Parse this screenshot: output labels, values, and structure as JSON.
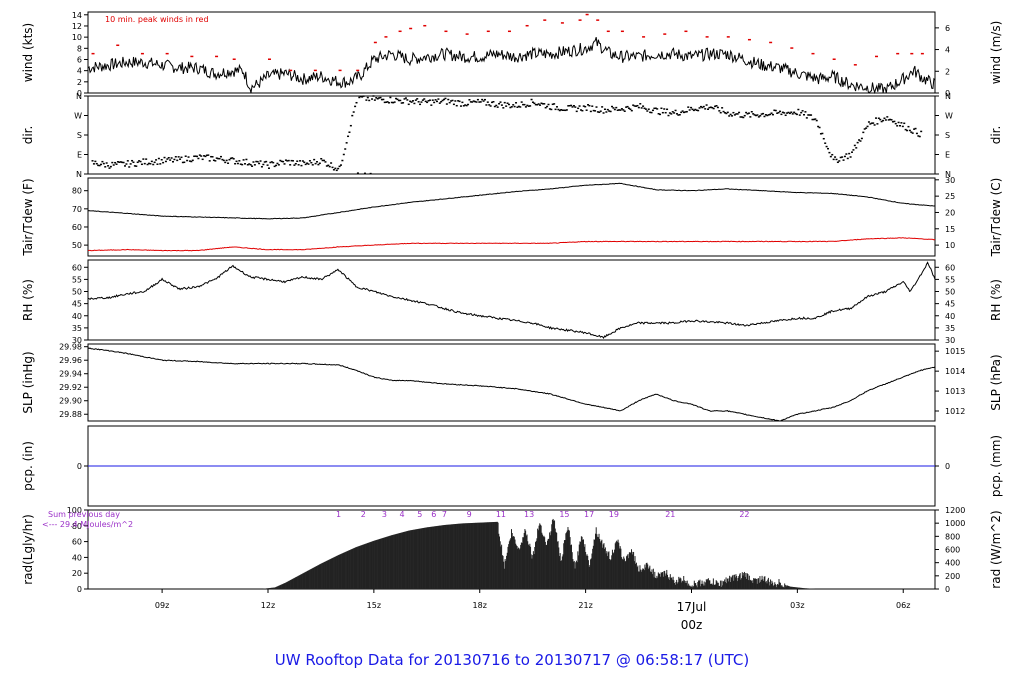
{
  "figure": {
    "title": "UW Rooftop Data for 20130716  to  20130717 @ 06:58:17  (UTC)",
    "x_ticks": [
      "09z",
      "12z",
      "15z",
      "18z",
      "21z",
      "03z",
      "06z"
    ],
    "x_tick_hours": [
      9,
      12,
      15,
      18,
      21,
      27,
      30
    ],
    "x_range_hours": [
      6.9,
      30.9
    ],
    "day_label": "17Jul",
    "day_label_z": "00z",
    "colors": {
      "axis": "#000000",
      "red": "#e00000",
      "blue": "#1a1ae6",
      "purple": "#9b30c8"
    }
  },
  "chart_data": [
    {
      "type": "line",
      "name": "wind",
      "ylabel_left": "wind (kts)",
      "ylabel_right": "wind (m/s)",
      "annotation": "10 min. peak winds in red",
      "ylim": [
        0,
        14.5
      ],
      "yticks_left": [
        "0",
        "2",
        "4",
        "6",
        "8",
        "10",
        "12",
        "14"
      ],
      "yticks_left_values": [
        0,
        2,
        4,
        6,
        8,
        10,
        12,
        14
      ],
      "yticks_right": [
        "0",
        "2",
        "4",
        "6"
      ],
      "yticks_right_values": [
        0,
        3.89,
        7.78,
        11.66
      ],
      "series": [
        {
          "hours": [
            6.9,
            7.5,
            8.0,
            8.5,
            9.0,
            9.5,
            10.0,
            10.5,
            11.0,
            11.3,
            11.5,
            11.7,
            12.0,
            12.5,
            13.0,
            13.5,
            14.0,
            14.3,
            14.6,
            15.0,
            15.5,
            16.0,
            16.5,
            17.0,
            17.5,
            18.0,
            18.5,
            19.0,
            19.5,
            20.0,
            20.5,
            21.0,
            21.3,
            21.5,
            21.7,
            22.0,
            22.5,
            23.0,
            23.5,
            24.0,
            24.5,
            25.0,
            25.5,
            26.0,
            26.5,
            27.0,
            27.3,
            27.6,
            28.0,
            28.5,
            29.0,
            29.5,
            30.0,
            30.3,
            30.6,
            30.9
          ],
          "values": [
            4.5,
            5,
            5.5,
            5.5,
            5,
            4.5,
            4.5,
            3.5,
            4,
            4,
            1,
            1.5,
            3,
            3.5,
            2.5,
            3,
            2,
            2,
            3,
            6,
            7,
            6,
            6.5,
            7,
            6.5,
            6.5,
            7,
            6.5,
            7,
            7,
            7.5,
            8,
            9,
            8,
            7,
            6.5,
            6.5,
            7,
            7,
            6.5,
            7,
            7,
            6,
            5,
            4.5,
            3.5,
            3,
            2.5,
            3,
            1.5,
            1,
            0.5,
            2.5,
            4,
            2.5,
            1.5
          ],
          "color": "#000000"
        },
        {
          "hours": [
            7.0,
            7.7,
            8.4,
            9.1,
            9.8,
            10.5,
            11.0,
            12.0,
            12.6,
            13.3,
            14.0,
            14.5,
            15.0,
            15.3,
            15.7,
            16.0,
            16.4,
            17.0,
            17.6,
            18.2,
            18.8,
            19.3,
            19.8,
            20.3,
            20.8,
            21.0,
            21.3,
            21.6,
            22.0,
            22.6,
            23.2,
            23.8,
            24.4,
            25.0,
            25.6,
            26.2,
            26.8,
            27.4,
            28.0,
            28.6,
            29.2,
            29.8,
            30.2,
            30.5
          ],
          "values": [
            7,
            8.5,
            7,
            7,
            6.5,
            6.5,
            6,
            6,
            4,
            4,
            4,
            4,
            9,
            10,
            11,
            11.5,
            12,
            11,
            10.5,
            11,
            11,
            12,
            13,
            12.5,
            13,
            14,
            13,
            11,
            11,
            10,
            10.5,
            11,
            10,
            10,
            9.5,
            9,
            8,
            7,
            6,
            5,
            6.5,
            7,
            7,
            7
          ],
          "color": "#e00000"
        }
      ]
    },
    {
      "type": "scatter",
      "name": "dir",
      "ylabel_left": "dir.",
      "ylabel_right": "dir.",
      "ylim": [
        0,
        360
      ],
      "yticks_left": [
        "N",
        "E",
        "S",
        "W",
        "N"
      ],
      "yticks_left_values": [
        0,
        90,
        180,
        270,
        360
      ],
      "yticks_right": [
        "N",
        "E",
        "S",
        "W",
        "N"
      ],
      "yticks_right_values": [
        0,
        90,
        180,
        270,
        360
      ],
      "series": [
        {
          "hours": [
            7.0,
            7.5,
            8.0,
            8.5,
            9.0,
            9.5,
            10.0,
            10.5,
            11.0,
            11.5,
            12.0,
            12.5,
            13.0,
            13.5,
            14.0,
            14.5,
            15.0,
            15.5,
            16.0,
            16.5,
            17.0,
            17.5,
            18.0,
            18.5,
            19.0,
            19.5,
            20.0,
            20.5,
            21.0,
            21.5,
            22.0,
            22.5,
            23.0,
            23.5,
            24.0,
            24.5,
            25.0,
            25.5,
            26.0,
            26.5,
            27.0,
            27.5,
            28.0,
            28.5,
            29.0,
            29.5,
            30.0,
            30.5
          ],
          "values": [
            50,
            40,
            45,
            55,
            60,
            65,
            75,
            70,
            60,
            50,
            40,
            55,
            45,
            60,
            20,
            350,
            345,
            340,
            335,
            330,
            335,
            325,
            330,
            320,
            315,
            330,
            310,
            300,
            305,
            295,
            300,
            310,
            290,
            280,
            300,
            310,
            280,
            270,
            275,
            280,
            285,
            250,
            60,
            90,
            230,
            260,
            220,
            180
          ],
          "color": "#000000"
        }
      ]
    },
    {
      "type": "line",
      "name": "temperature",
      "ylabel_left": "Tair/Tdew (F)",
      "ylabel_right": "Tair/Tdew (C)",
      "ylim": [
        44,
        87
      ],
      "yticks_left": [
        "50",
        "60",
        "70",
        "80"
      ],
      "yticks_left_values": [
        50,
        60,
        70,
        80
      ],
      "yticks_right": [
        "10",
        "15",
        "20",
        "25",
        "30"
      ],
      "yticks_right_values": [
        50,
        59,
        68,
        77,
        86
      ],
      "series": [
        {
          "hours": [
            6.9,
            8,
            9,
            10,
            11,
            12,
            13,
            14,
            15,
            16,
            17,
            18,
            19,
            20,
            21,
            22,
            23,
            24,
            25,
            26,
            27,
            28,
            29,
            30,
            30.9
          ],
          "values": [
            69,
            67.5,
            66,
            65.5,
            65,
            64.5,
            65,
            68,
            71,
            73.5,
            75.5,
            77.5,
            79.5,
            81,
            83,
            84,
            80.5,
            80,
            81,
            80,
            79,
            78.5,
            76.5,
            73,
            71.5
          ],
          "color": "#000000"
        },
        {
          "hours": [
            6.9,
            8,
            9,
            10,
            11,
            12,
            13,
            14,
            15,
            16,
            17,
            18,
            19,
            20,
            21,
            22,
            23,
            24,
            25,
            26,
            27,
            28,
            29,
            30,
            30.9
          ],
          "values": [
            47,
            47.5,
            47,
            47,
            49,
            47.5,
            47.5,
            49,
            50,
            51,
            51,
            51,
            51,
            51,
            52,
            52,
            52,
            52,
            52,
            52,
            52,
            52,
            53.5,
            54,
            53
          ],
          "color": "#e00000"
        }
      ]
    },
    {
      "type": "line",
      "name": "rh",
      "ylabel_left": "RH (%)",
      "ylabel_right": "RH (%)",
      "ylim": [
        30,
        63
      ],
      "yticks_left": [
        "30",
        "35",
        "40",
        "45",
        "50",
        "55",
        "60"
      ],
      "yticks_left_values": [
        30,
        35,
        40,
        45,
        50,
        55,
        60
      ],
      "yticks_right": [
        "30",
        "35",
        "40",
        "45",
        "50",
        "55",
        "60"
      ],
      "yticks_right_values": [
        30,
        35,
        40,
        45,
        50,
        55,
        60
      ],
      "series": [
        {
          "hours": [
            6.9,
            7.5,
            8,
            8.5,
            9,
            9.5,
            10,
            10.5,
            11,
            11.5,
            12,
            12.5,
            13,
            13.5,
            14,
            14.5,
            15,
            15.5,
            16,
            16.5,
            17,
            17.5,
            18,
            18.5,
            19,
            19.5,
            20,
            20.5,
            21,
            21.5,
            22,
            22.5,
            23,
            23.5,
            24,
            24.5,
            25,
            25.5,
            26,
            26.5,
            27,
            27.5,
            28,
            28.5,
            29,
            29.5,
            30,
            30.2,
            30.5,
            30.7,
            30.9
          ],
          "values": [
            47,
            47.5,
            49,
            50,
            55,
            51,
            52,
            55,
            60.5,
            56,
            55,
            54,
            56,
            55,
            59,
            52,
            50,
            48,
            46.5,
            45,
            43,
            41,
            40,
            39,
            38,
            37,
            35,
            34,
            33,
            31,
            35,
            37,
            37,
            37,
            38,
            37.5,
            37,
            36,
            37,
            38,
            39,
            39,
            42,
            43,
            48,
            50,
            54,
            50,
            57,
            62,
            55
          ],
          "color": "#000000"
        }
      ]
    },
    {
      "type": "line",
      "name": "slp",
      "ylabel_left": "SLP (inHg)",
      "ylabel_right": "SLP (hPa)",
      "ylim": [
        29.87,
        29.984
      ],
      "yticks_left": [
        "29.88",
        "29.90",
        "29.92",
        "29.94",
        "29.96",
        "29.98"
      ],
      "yticks_left_values": [
        29.88,
        29.9,
        29.92,
        29.94,
        29.96,
        29.98
      ],
      "yticks_right": [
        "1012",
        "1013",
        "1014",
        "1015"
      ],
      "yticks_right_values": [
        29.8848,
        29.9143,
        29.9438,
        29.9734
      ],
      "series": [
        {
          "hours": [
            6.9,
            7.5,
            8,
            9,
            10,
            11,
            12,
            13,
            14,
            14.5,
            15,
            15.5,
            16,
            17,
            18,
            19,
            20,
            21,
            22,
            22.5,
            23,
            23.5,
            24,
            24.5,
            25,
            25.5,
            26,
            26.5,
            27,
            27.5,
            28,
            28.5,
            29,
            29.5,
            30,
            30.5,
            30.9
          ],
          "values": [
            29.978,
            29.974,
            29.97,
            29.96,
            29.958,
            29.955,
            29.955,
            29.955,
            29.953,
            29.945,
            29.935,
            29.93,
            29.93,
            29.925,
            29.922,
            29.918,
            29.91,
            29.895,
            29.885,
            29.9,
            29.91,
            29.9,
            29.895,
            29.885,
            29.885,
            29.88,
            29.875,
            29.87,
            29.88,
            29.885,
            29.89,
            29.9,
            29.915,
            29.925,
            29.935,
            29.945,
            29.95
          ],
          "color": "#000000"
        }
      ]
    },
    {
      "type": "line",
      "name": "pcp",
      "ylabel_left": "pcp. (in)",
      "ylabel_right": "pcp. (mm)",
      "ylim": [
        -1,
        1
      ],
      "yticks_left": [
        "0"
      ],
      "yticks_left_values": [
        0
      ],
      "yticks_right": [
        "0"
      ],
      "yticks_right_values": [
        0
      ],
      "series": [
        {
          "hours": [
            6.9,
            30.9
          ],
          "values": [
            0,
            0
          ],
          "color": "#1a1ae6"
        }
      ]
    },
    {
      "type": "area",
      "name": "rad",
      "ylabel_left": "rad(Lgly/hr)",
      "ylabel_right": "rad (W/m^2)",
      "ylim": [
        0,
        100
      ],
      "yticks_left": [
        "0",
        "20",
        "40",
        "60",
        "80",
        "100"
      ],
      "yticks_left_values": [
        0,
        20,
        40,
        60,
        80,
        100
      ],
      "yticks_right": [
        "0",
        "200",
        "400",
        "600",
        "800",
        "1000",
        "1200"
      ],
      "yticks_right_values": [
        0,
        16.67,
        33.33,
        50,
        66.67,
        83.33,
        100
      ],
      "annotation_1": "Sum previous day",
      "annotation_2": "<--- 29.4 MJoules/m^2",
      "hour_marks": [
        "1",
        "2",
        "3",
        "4",
        "5",
        "6",
        "7",
        "9",
        "11",
        "13",
        "15",
        "17",
        "19",
        "21",
        "22"
      ],
      "hour_mark_positions": [
        14.0,
        14.7,
        15.3,
        15.8,
        16.3,
        16.7,
        17.0,
        17.7,
        18.6,
        19.4,
        20.4,
        21.1,
        21.8,
        23.4,
        25.5
      ],
      "series": [
        {
          "hours": [
            6.9,
            11.8,
            12.2,
            12.5,
            13,
            13.5,
            14,
            14.5,
            15,
            15.5,
            16,
            16.5,
            17,
            17.5,
            18,
            18.5,
            18.7,
            18.9,
            19.1,
            19.3,
            19.5,
            19.7,
            19.9,
            20.1,
            20.3,
            20.5,
            20.7,
            20.9,
            21.1,
            21.3,
            21.5,
            21.7,
            21.9,
            22.1,
            22.3,
            22.5,
            22.8,
            23,
            23.3,
            23.5,
            23.8,
            24,
            24.3,
            24.5,
            24.8,
            25,
            25.3,
            25.5,
            25.8,
            26,
            26.3,
            26.5,
            26.8,
            27.2,
            27.6,
            30.9
          ],
          "values": [
            0,
            0,
            2,
            8,
            20,
            32,
            43,
            53,
            61,
            68,
            74,
            78,
            81,
            83,
            84,
            85,
            30,
            72,
            50,
            75,
            40,
            85,
            55,
            90,
            35,
            80,
            25,
            70,
            30,
            75,
            55,
            40,
            60,
            35,
            50,
            25,
            30,
            15,
            20,
            10,
            12,
            5,
            8,
            10,
            6,
            12,
            15,
            18,
            10,
            14,
            6,
            8,
            3,
            1,
            0,
            0
          ],
          "color": "#000000"
        }
      ]
    }
  ]
}
